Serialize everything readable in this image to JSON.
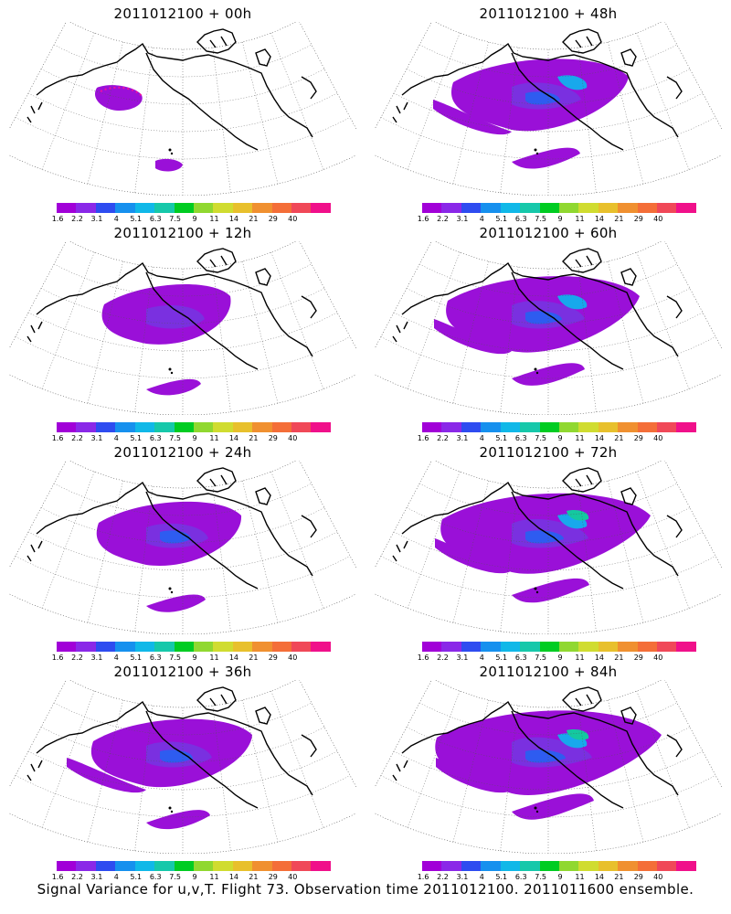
{
  "colorbar": {
    "colors": [
      "#a100d8",
      "#8a28e8",
      "#2e4cf0",
      "#1690ee",
      "#10b8e8",
      "#16c8aa",
      "#00cc22",
      "#90d830",
      "#d0dc30",
      "#e8c02c",
      "#f09030",
      "#f46e38",
      "#f04858",
      "#f0108a"
    ],
    "ticks": [
      "1.6",
      "2.2",
      "3.1",
      "4",
      "5.1",
      "6.3",
      "7.5",
      "9",
      "11",
      "14",
      "21",
      "29",
      "40"
    ]
  },
  "panels": [
    {
      "title": "2011012100 + 00h",
      "level": 0
    },
    {
      "title": "2011012100 + 48h",
      "level": 4
    },
    {
      "title": "2011012100 + 12h",
      "level": 1
    },
    {
      "title": "2011012100 + 60h",
      "level": 5
    },
    {
      "title": "2011012100 + 24h",
      "level": 2
    },
    {
      "title": "2011012100 + 72h",
      "level": 6
    },
    {
      "title": "2011012100 + 36h",
      "level": 3
    },
    {
      "title": "2011012100 + 84h",
      "level": 7
    }
  ],
  "footer": "Signal Variance for u,v,T. Flight 73. Observation time 2011012100. 2011011600 ensemble."
}
